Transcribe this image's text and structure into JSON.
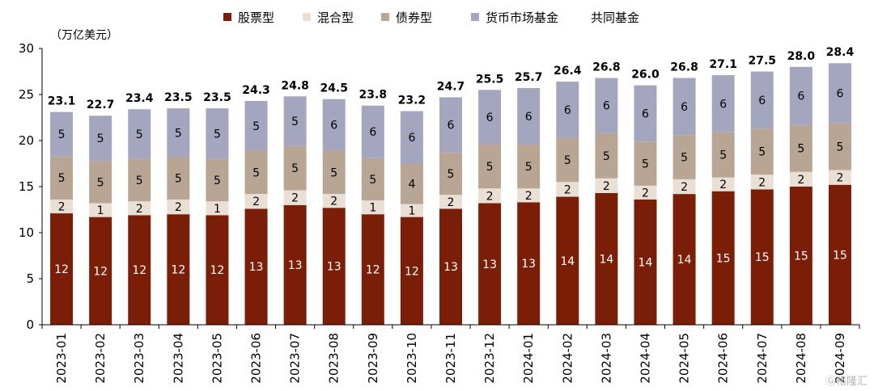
{
  "chart_data": {
    "type": "bar",
    "stacked": true,
    "unit_label": "（万亿美元）",
    "categories": [
      "2023-01",
      "2023-02",
      "2023-03",
      "2023-04",
      "2023-05",
      "2023-06",
      "2023-07",
      "2023-08",
      "2023-09",
      "2023-10",
      "2023-11",
      "2023-12",
      "2024-01",
      "2024-02",
      "2024-03",
      "2024-04",
      "2024-05",
      "2024-06",
      "2024-07",
      "2024-08",
      "2024-09"
    ],
    "series": [
      {
        "name": "股票型",
        "color": "#7b1e08",
        "label_color": "#ffffff",
        "values": [
          12.1,
          11.7,
          11.9,
          12.0,
          11.9,
          12.6,
          13.0,
          12.7,
          12.0,
          11.7,
          12.6,
          13.2,
          13.3,
          13.9,
          14.3,
          13.6,
          14.2,
          14.5,
          14.7,
          15.0,
          15.2
        ],
        "labels": [
          "12",
          "12",
          "12",
          "12",
          "12",
          "13",
          "13",
          "13",
          "12",
          "12",
          "13",
          "13",
          "13",
          "14",
          "14",
          "14",
          "14",
          "15",
          "15",
          "15",
          "15"
        ]
      },
      {
        "name": "混合型",
        "color": "#e9dfd4",
        "label_color": "#000000",
        "values": [
          1.5,
          1.5,
          1.5,
          1.6,
          1.5,
          1.6,
          1.6,
          1.5,
          1.5,
          1.4,
          1.5,
          1.6,
          1.5,
          1.6,
          1.6,
          1.5,
          1.6,
          1.5,
          1.6,
          1.6,
          1.6
        ],
        "labels": [
          "2",
          "1",
          "2",
          "2",
          "1",
          "2",
          "2",
          "2",
          "1",
          "1",
          "2",
          "2",
          "2",
          "2",
          "2",
          "2",
          "2",
          "2",
          "2",
          "2",
          "2"
        ]
      },
      {
        "name": "债券型",
        "color": "#b9a593",
        "label_color": "#000000",
        "values": [
          4.7,
          4.6,
          4.6,
          4.6,
          4.6,
          4.7,
          4.8,
          4.7,
          4.6,
          4.4,
          4.6,
          4.8,
          4.8,
          4.8,
          4.9,
          4.8,
          4.8,
          4.9,
          5.0,
          5.1,
          5.1
        ],
        "labels": [
          "5",
          "5",
          "5",
          "5",
          "5",
          "5",
          "5",
          "5",
          "5",
          "4",
          "5",
          "5",
          "5",
          "5",
          "5",
          "5",
          "5",
          "5",
          "5",
          "5",
          "5"
        ]
      },
      {
        "name": "货币市场基金",
        "color": "#a4a6c0",
        "label_color": "#000000",
        "values": [
          4.8,
          4.9,
          5.4,
          5.3,
          5.5,
          5.4,
          5.4,
          5.6,
          5.7,
          5.7,
          6.0,
          5.9,
          6.1,
          6.1,
          6.0,
          6.1,
          6.2,
          6.2,
          6.2,
          6.3,
          6.5
        ],
        "labels": [
          "5",
          "5",
          "5",
          "5",
          "5",
          "5",
          "5",
          "6",
          "6",
          "6",
          "6",
          "6",
          "6",
          "6",
          "6",
          "6",
          "6",
          "6",
          "6",
          "6",
          "6"
        ]
      }
    ],
    "totals_series_name": "共同基金",
    "totals": [
      "23.1",
      "22.7",
      "23.4",
      "23.5",
      "23.5",
      "24.3",
      "24.8",
      "24.5",
      "23.8",
      "23.2",
      "24.7",
      "25.5",
      "25.7",
      "26.4",
      "26.8",
      "26.0",
      "26.8",
      "27.1",
      "27.5",
      "28.0",
      "28.4"
    ],
    "total_values": [
      23.1,
      22.7,
      23.4,
      23.5,
      23.5,
      24.3,
      24.8,
      24.5,
      23.8,
      23.2,
      24.7,
      25.5,
      25.7,
      26.4,
      26.8,
      26.0,
      26.8,
      27.1,
      27.5,
      28.0,
      28.4
    ],
    "ylim": [
      0,
      30
    ],
    "yticks": [
      "0",
      "5",
      "10",
      "15",
      "20",
      "25",
      "30"
    ],
    "legend_position": "top",
    "grid": false
  },
  "watermark": "格隆汇"
}
